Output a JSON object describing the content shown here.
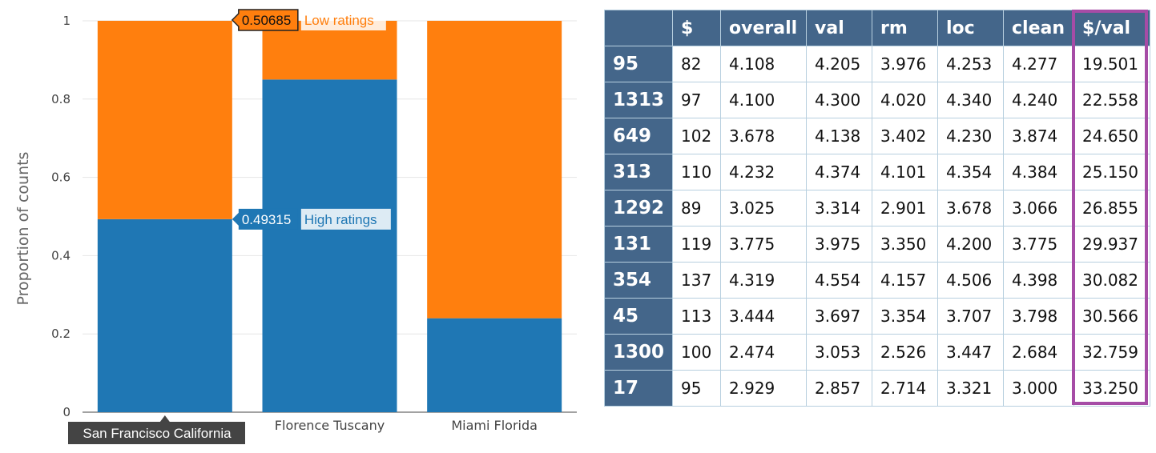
{
  "chart_data": {
    "type": "bar",
    "stacked": true,
    "categories": [
      "San Francisco California",
      "Florence Tuscany",
      "Miami Florida"
    ],
    "series": [
      {
        "name": "High ratings",
        "color": "#1f77b4",
        "values": [
          0.49315,
          0.85,
          0.24
        ]
      },
      {
        "name": "Low ratings",
        "color": "#ff7f0e",
        "values": [
          0.50685,
          0.15,
          0.76
        ]
      }
    ],
    "ylabel": "Proportion of counts",
    "ylim": [
      0,
      1
    ],
    "yticks": [
      "0",
      "0.2",
      "0.4",
      "0.6",
      "0.8",
      "1"
    ],
    "grid": true,
    "hover": {
      "category_label": "San Francisco California",
      "low_value": "0.50685",
      "low_name": "Low ratings",
      "high_value": "0.49315",
      "high_name": "High ratings"
    }
  },
  "table": {
    "columns": [
      "",
      "$",
      "overall",
      "val",
      "rm",
      "loc",
      "clean",
      "$/val"
    ],
    "rows": [
      {
        "id": "95",
        "cells": [
          "82",
          "4.108",
          "4.205",
          "3.976",
          "4.253",
          "4.277",
          "19.501"
        ]
      },
      {
        "id": "1313",
        "cells": [
          "97",
          "4.100",
          "4.300",
          "4.020",
          "4.340",
          "4.240",
          "22.558"
        ]
      },
      {
        "id": "649",
        "cells": [
          "102",
          "3.678",
          "4.138",
          "3.402",
          "4.230",
          "3.874",
          "24.650"
        ]
      },
      {
        "id": "313",
        "cells": [
          "110",
          "4.232",
          "4.374",
          "4.101",
          "4.354",
          "4.384",
          "25.150"
        ]
      },
      {
        "id": "1292",
        "cells": [
          "89",
          "3.025",
          "3.314",
          "2.901",
          "3.678",
          "3.066",
          "26.855"
        ]
      },
      {
        "id": "131",
        "cells": [
          "119",
          "3.775",
          "3.975",
          "3.350",
          "4.200",
          "3.775",
          "29.937"
        ]
      },
      {
        "id": "354",
        "cells": [
          "137",
          "4.319",
          "4.554",
          "4.157",
          "4.506",
          "4.398",
          "30.082"
        ]
      },
      {
        "id": "45",
        "cells": [
          "113",
          "3.444",
          "3.697",
          "3.354",
          "3.707",
          "3.798",
          "30.566"
        ]
      },
      {
        "id": "1300",
        "cells": [
          "100",
          "2.474",
          "3.053",
          "2.526",
          "3.447",
          "2.684",
          "32.759"
        ]
      },
      {
        "id": "17",
        "cells": [
          "95",
          "2.929",
          "2.857",
          "2.714",
          "3.321",
          "3.000",
          "33.250"
        ]
      }
    ],
    "highlight_column": "$/val",
    "highlight_color": "#a64ca6",
    "header_color": "#44668a"
  }
}
